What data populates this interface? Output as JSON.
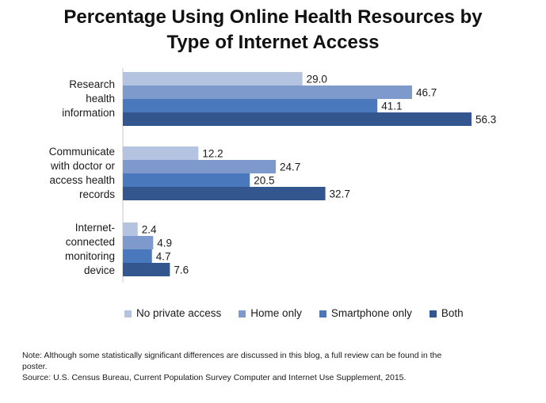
{
  "chart_data": {
    "type": "bar",
    "orientation": "horizontal",
    "title": "Percentage Using Online Health Resources by Type of Internet Access",
    "title_lines": [
      "Percentage Using Online Health Resources by",
      "Type of Internet Access"
    ],
    "categories": [
      [
        "Research",
        "health",
        "information"
      ],
      [
        "Communicate",
        "with doctor or",
        "access health",
        "records"
      ],
      [
        "Internet-",
        "connected",
        "monitoring",
        "device"
      ]
    ],
    "series": [
      {
        "name": "No private access",
        "color": "#b4c4e0",
        "values": [
          29.0,
          12.2,
          2.4
        ]
      },
      {
        "name": "Home only",
        "color": "#7e9acd",
        "values": [
          46.7,
          24.7,
          4.9
        ]
      },
      {
        "name": "Smartphone only",
        "color": "#4a78bc",
        "values": [
          41.1,
          20.5,
          4.7
        ]
      },
      {
        "name": "Both",
        "color": "#33568f",
        "values": [
          56.3,
          32.7,
          7.6
        ]
      }
    ],
    "xlim": [
      0,
      60
    ],
    "grid": false,
    "legend_position": "bottom"
  },
  "footer": {
    "note_line1": "Note: Although some statistically significant differences are discussed in this blog, a full review can be found in the",
    "note_line2": "poster.",
    "source": "Source: U.S. Census Bureau, Current Population Survey Computer and Internet Use Supplement, 2015."
  }
}
